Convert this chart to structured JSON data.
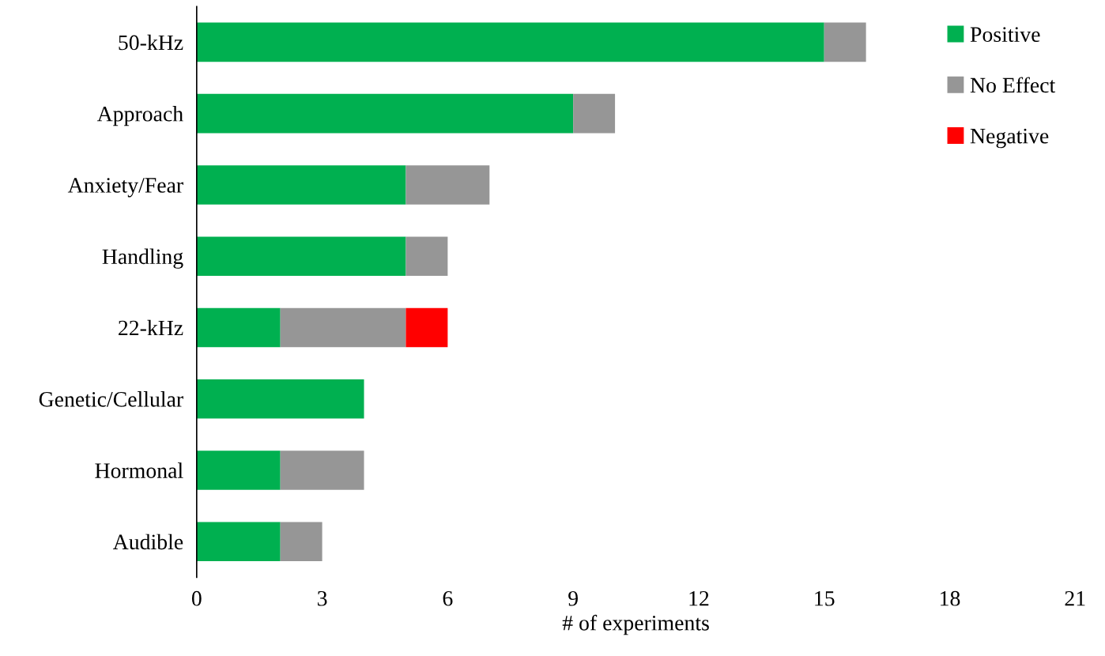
{
  "chart_data": {
    "type": "bar",
    "orientation": "horizontal",
    "stacked": true,
    "xlabel": "# of experiments",
    "categories": [
      "50-kHz",
      "Approach",
      "Anxiety/Fear",
      "Handling",
      "22-kHz",
      "Genetic/Cellular",
      "Hormonal",
      "Audible"
    ],
    "series": [
      {
        "name": "Positive",
        "color": "#00b050",
        "values": [
          15,
          9,
          5,
          5,
          2,
          4,
          2,
          2
        ]
      },
      {
        "name": "No Effect",
        "color": "#969696",
        "values": [
          1,
          1,
          2,
          1,
          3,
          0,
          2,
          1
        ]
      },
      {
        "name": "Negative",
        "color": "#ff0000",
        "values": [
          0,
          0,
          0,
          0,
          1,
          0,
          0,
          0
        ]
      }
    ],
    "xlim": [
      0,
      21
    ],
    "xticks": [
      0,
      3,
      6,
      9,
      12,
      15,
      18,
      21
    ],
    "grid": false,
    "legend": "top right"
  }
}
